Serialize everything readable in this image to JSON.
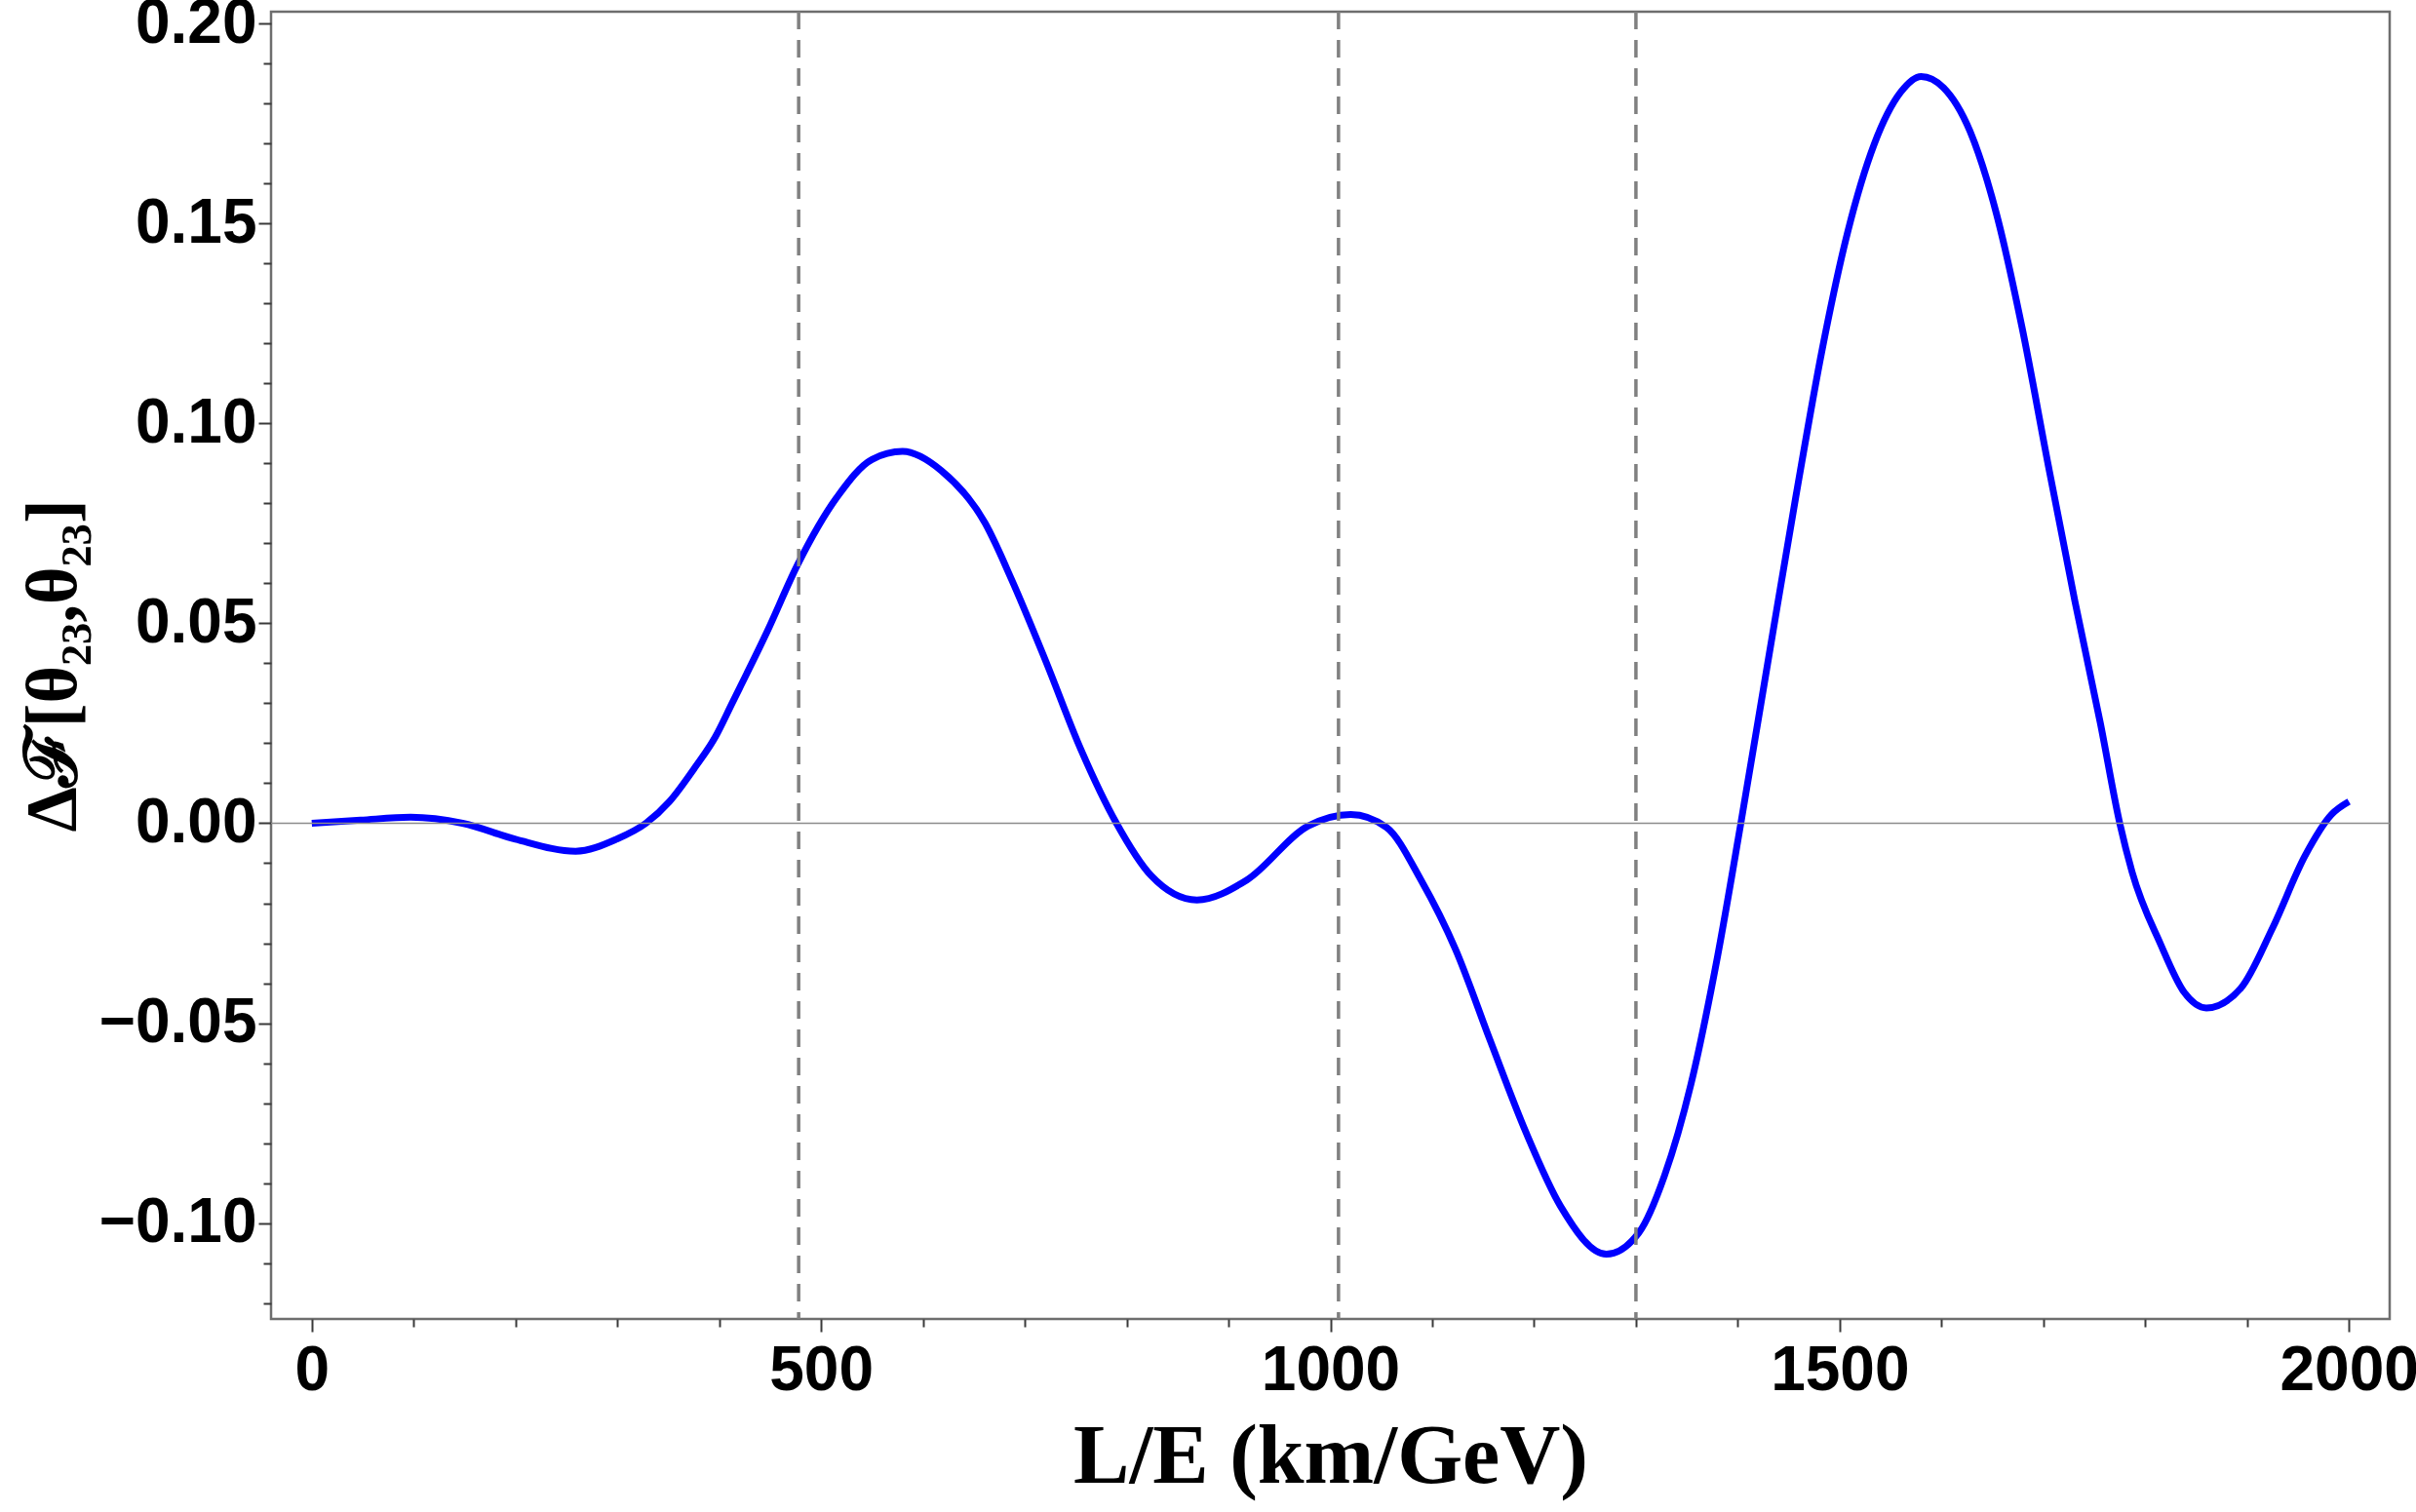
{
  "chart_data": {
    "type": "line",
    "xlabel": "L/E (km/GeV)",
    "ylabel": "Δℱ[θ₂₃,θ₂₃]",
    "x": [
      0,
      48,
      97,
      148,
      200,
      259,
      299,
      328,
      351,
      376,
      396,
      413,
      447,
      477,
      516,
      550,
      580,
      618,
      661,
      687,
      721,
      755,
      790,
      824,
      869,
      918,
      978,
      1020,
      1055,
      1089,
      1123,
      1157,
      1192,
      1226,
      1271,
      1303,
      1328,
      1354,
      1380,
      1403,
      1431,
      1457,
      1483,
      1508,
      1534,
      1560,
      1580,
      1602,
      1628,
      1654,
      1679,
      1705,
      1731,
      1756,
      1775,
      1787,
      1815,
      1838,
      1860,
      1894,
      1925,
      1957,
      1983,
      2000
    ],
    "series": [
      {
        "color": "#0000ff",
        "values": [
          0,
          0.0008,
          0.0015,
          0,
          -0.004,
          -0.007,
          -0.004,
          0,
          0.0054,
          0.0139,
          0.0215,
          0.0302,
          0.0479,
          0.0647,
          0.0817,
          0.091,
          0.093,
          0.0882,
          0.0751,
          0.061,
          0.0403,
          0.0185,
          0,
          -0.0131,
          -0.0192,
          -0.0142,
          -0.0007,
          0.0022,
          -0.001,
          -0.0142,
          -0.0316,
          -0.0544,
          -0.0773,
          -0.0958,
          -0.1078,
          -0.1024,
          -0.0882,
          -0.0653,
          -0.0335,
          0,
          0.0425,
          0.0817,
          0.1187,
          0.148,
          0.1699,
          0.1829,
          0.1868,
          0.184,
          0.1731,
          0.1524,
          0.1241,
          0.0893,
          0.0555,
          0.025,
          0,
          -0.0121,
          -0.0302,
          -0.0422,
          -0.0462,
          -0.0412,
          -0.0262,
          -0.0081,
          0.0022,
          0.0054
        ]
      }
    ],
    "xlim": [
      -40,
      2040
    ],
    "ylim": [
      -0.124,
      0.203
    ],
    "xticks": [
      0,
      {
        "value": 100,
        "label": null
      },
      {
        "value": 200,
        "label": null
      },
      {
        "value": 300,
        "label": null
      },
      {
        "value": 400,
        "label": null
      },
      500,
      {
        "value": 600,
        "label": null
      },
      {
        "value": 700,
        "label": null
      },
      {
        "value": 800,
        "label": null
      },
      {
        "value": 900,
        "label": null
      },
      1000,
      {
        "value": 1100,
        "label": null
      },
      {
        "value": 1200,
        "label": null
      },
      {
        "value": 1300,
        "label": null
      },
      {
        "value": 1400,
        "label": null
      },
      1500,
      {
        "value": 1600,
        "label": null
      },
      {
        "value": 1700,
        "label": null
      },
      {
        "value": 1800,
        "label": null
      },
      {
        "value": 1900,
        "label": null
      },
      2000
    ],
    "yticks": [
      {
        "value": -0.12,
        "label": null
      },
      {
        "value": -0.11,
        "label": null
      },
      {
        "value": -0.1,
        "label": "−0.10"
      },
      {
        "value": -0.09,
        "label": null
      },
      {
        "value": -0.08,
        "label": null
      },
      {
        "value": -0.07,
        "label": null
      },
      {
        "value": -0.06,
        "label": null
      },
      {
        "value": -0.05,
        "label": "−0.05"
      },
      {
        "value": -0.04,
        "label": null
      },
      {
        "value": -0.03,
        "label": null
      },
      {
        "value": -0.02,
        "label": null
      },
      {
        "value": -0.01,
        "label": null
      },
      {
        "value": 0,
        "label": "0.00"
      },
      {
        "value": 0.01,
        "label": null
      },
      {
        "value": 0.02,
        "label": null
      },
      {
        "value": 0.03,
        "label": null
      },
      {
        "value": 0.04,
        "label": null
      },
      {
        "value": 0.05,
        "label": "0.05"
      },
      {
        "value": 0.06,
        "label": null
      },
      {
        "value": 0.07,
        "label": null
      },
      {
        "value": 0.08,
        "label": null
      },
      {
        "value": 0.09,
        "label": null
      },
      {
        "value": 0.1,
        "label": "0.10"
      },
      {
        "value": 0.11,
        "label": null
      },
      {
        "value": 0.12,
        "label": null
      },
      {
        "value": 0.13,
        "label": null
      },
      {
        "value": 0.14,
        "label": null
      },
      {
        "value": 0.15,
        "label": "0.15"
      },
      {
        "value": 0.16,
        "label": null
      },
      {
        "value": 0.17,
        "label": null
      },
      {
        "value": 0.18,
        "label": null
      },
      {
        "value": 0.19,
        "label": null
      },
      {
        "value": 0.2,
        "label": "0.20"
      }
    ],
    "ref_lines": [
      {
        "axis": "y",
        "value": 0,
        "color": "#8c8c8c",
        "line_style": "solid"
      },
      {
        "axis": "x",
        "value": 478,
        "color": "#808080",
        "line_style": "dashed"
      },
      {
        "axis": "x",
        "value": 1008,
        "color": "#808080",
        "line_style": "dashed"
      },
      {
        "axis": "x",
        "value": 1300,
        "color": "#808080",
        "line_style": "dashed"
      }
    ]
  }
}
